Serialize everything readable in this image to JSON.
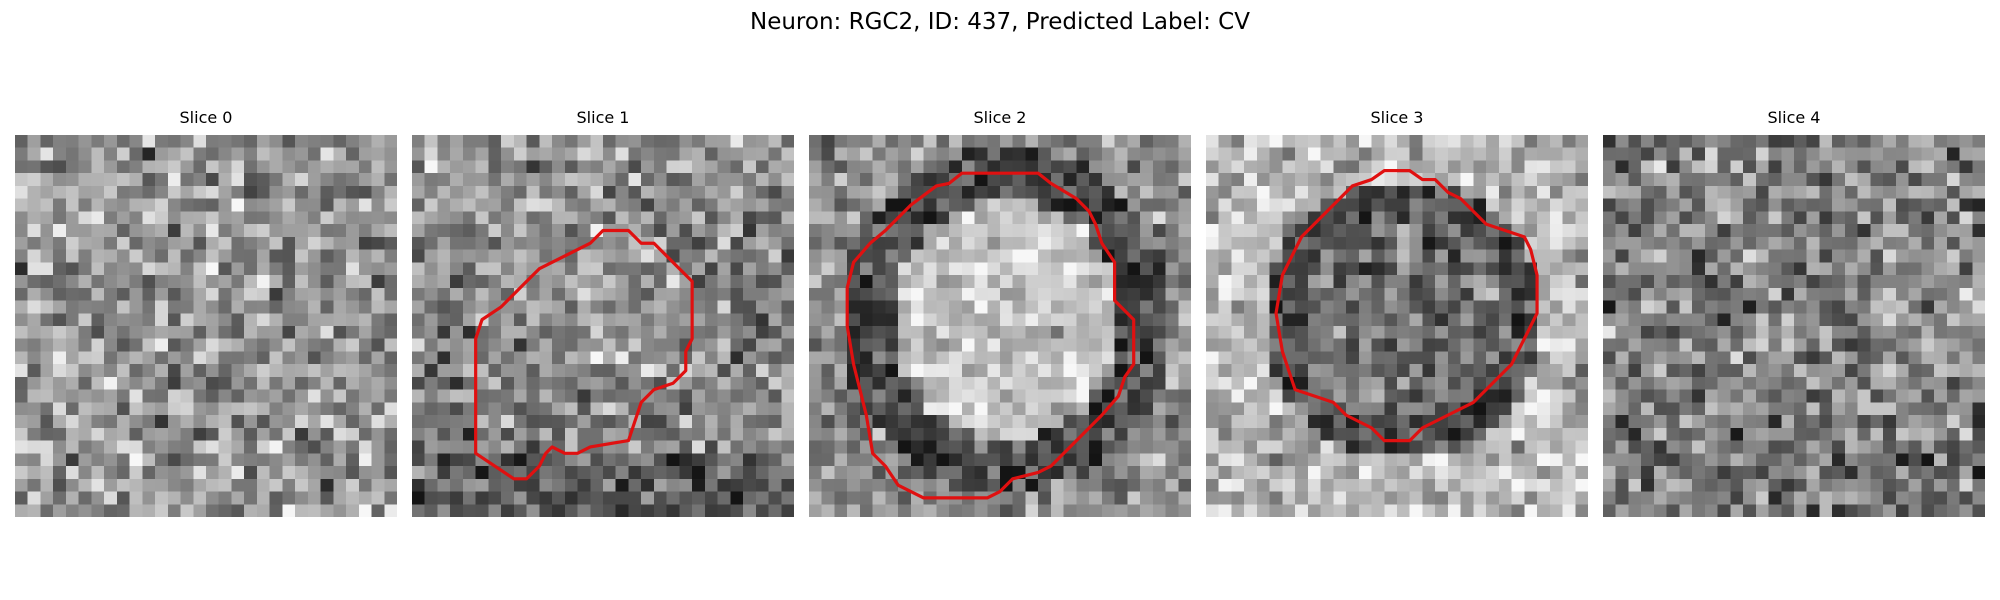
{
  "figure": {
    "title": "Neuron: RGC2, ID: 437, Predicted Label: CV",
    "contour_color": "#e01010",
    "colormap": "gray",
    "panels": [
      {
        "title": "Slice 0",
        "pattern": "noise",
        "seed": 11,
        "has_contour": false
      },
      {
        "title": "Slice 1",
        "pattern": "blob-light",
        "seed": 23,
        "has_contour": true
      },
      {
        "title": "Slice 2",
        "pattern": "bright-ring",
        "seed": 37,
        "has_contour": true
      },
      {
        "title": "Slice 3",
        "pattern": "dark-ring",
        "seed": 41,
        "has_contour": true
      },
      {
        "title": "Slice 4",
        "pattern": "noise-dark",
        "seed": 53,
        "has_contour": false
      }
    ]
  }
}
